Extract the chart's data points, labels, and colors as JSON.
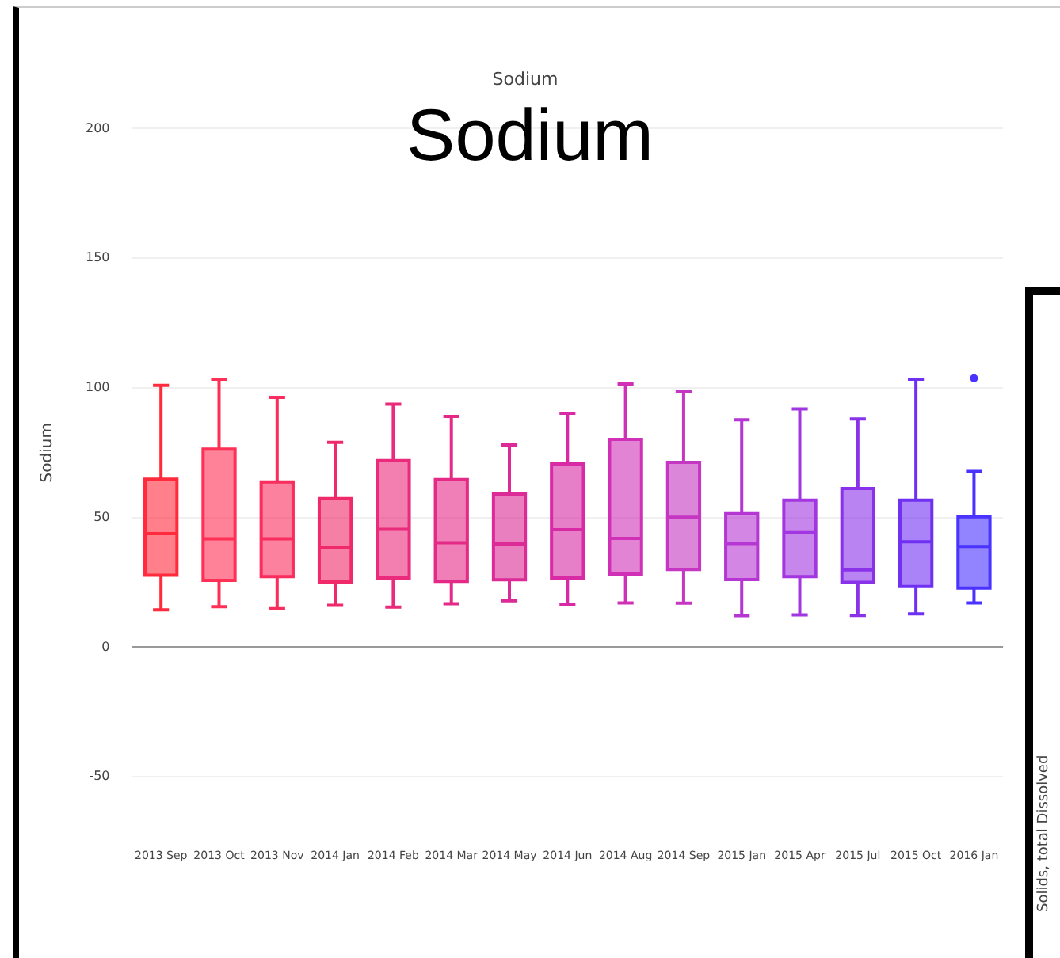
{
  "chart_data": {
    "type": "box",
    "title": "Sodium",
    "ylabel": "Sodium",
    "annotations": [
      "Sodium",
      "Solids, total Dissolved"
    ],
    "categories": [
      "2013 Sep",
      "2013 Oct",
      "2013 Nov",
      "2014 Jan",
      "2014 Feb",
      "2014 Mar",
      "2014 May",
      "2014 Jun",
      "2014 Aug",
      "2014 Sep",
      "2015 Jan",
      "2015 Apr",
      "2015 Jul",
      "2015 Oct",
      "2016 Jan"
    ],
    "colors": [
      "#ff2a3c",
      "#ff2f55",
      "#f92d5e",
      "#f02a6a",
      "#ea2a7a",
      "#e42a86",
      "#dc2a96",
      "#d72aa4",
      "#cf30b6",
      "#c536c2",
      "#b536d2",
      "#a236e0",
      "#8a32ea",
      "#7030f2",
      "#4a32ff"
    ],
    "boxes": [
      {
        "low": 14.4,
        "q1": 27.8,
        "median": 43.8,
        "q3": 64.8,
        "high": 101
      },
      {
        "low": 15.6,
        "q1": 25.8,
        "median": 41.8,
        "q3": 76.4,
        "high": 103.3
      },
      {
        "low": 14.9,
        "q1": 27.2,
        "median": 41.8,
        "q3": 63.7,
        "high": 96.3
      },
      {
        "low": 16.2,
        "q1": 25.2,
        "median": 38.3,
        "q3": 57.3,
        "high": 79
      },
      {
        "low": 15.5,
        "q1": 26.7,
        "median": 45.5,
        "q3": 72,
        "high": 93.7
      },
      {
        "low": 16.8,
        "q1": 25.4,
        "median": 40.3,
        "q3": 64.6,
        "high": 89
      },
      {
        "low": 17.9,
        "q1": 26,
        "median": 39.8,
        "q3": 59.1,
        "high": 78
      },
      {
        "low": 16.4,
        "q1": 26.7,
        "median": 45.3,
        "q3": 70.7,
        "high": 90.2
      },
      {
        "low": 17.1,
        "q1": 28.2,
        "median": 42,
        "q3": 80.1,
        "high": 101.5
      },
      {
        "low": 17,
        "q1": 30,
        "median": 50.1,
        "q3": 71.3,
        "high": 98.5
      },
      {
        "low": 12.2,
        "q1": 26.1,
        "median": 40,
        "q3": 51.5,
        "high": 87.7
      },
      {
        "low": 12.5,
        "q1": 27.2,
        "median": 44.2,
        "q3": 56.7,
        "high": 91.9
      },
      {
        "low": 12.3,
        "q1": 25,
        "median": 29.8,
        "q3": 61.2,
        "high": 88
      },
      {
        "low": 12.9,
        "q1": 23.4,
        "median": 40.7,
        "q3": 56.7,
        "high": 103.3
      },
      {
        "low": 17.1,
        "q1": 22.8,
        "median": 38.8,
        "q3": 50.3,
        "high": 67.8,
        "outliers": [
          103.7
        ]
      }
    ],
    "ylim": [
      -50,
      200
    ],
    "yticks": [
      -50,
      0,
      50,
      100,
      150,
      200
    ],
    "grid": "y",
    "legend": false
  }
}
